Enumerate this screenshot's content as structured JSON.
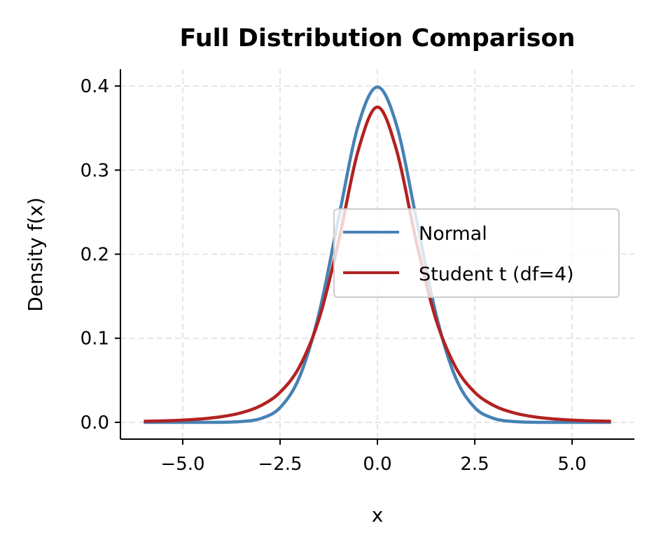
{
  "chart_data": {
    "type": "line",
    "title": "Full Distribution Comparison",
    "xlabel": "x",
    "ylabel": "Density f(x)",
    "xlim": [
      -6.6,
      6.6
    ],
    "ylim": [
      -0.02,
      0.42
    ],
    "xticks": [
      -5.0,
      -2.5,
      0.0,
      2.5,
      5.0
    ],
    "xtick_labels": [
      "−5.0",
      "−2.5",
      "0.0",
      "2.5",
      "5.0"
    ],
    "yticks": [
      0.0,
      0.1,
      0.2,
      0.3,
      0.4
    ],
    "ytick_labels": [
      "0.0",
      "0.1",
      "0.2",
      "0.3",
      "0.4"
    ],
    "grid": true,
    "legend_position": "center-right",
    "x": [
      -6,
      -5.5,
      -5,
      -4.5,
      -4,
      -3.5,
      -3,
      -2.5,
      -2,
      -1.5,
      -1,
      -0.5,
      0,
      0.5,
      1,
      1.5,
      2,
      2.5,
      3,
      3.5,
      4,
      4.5,
      5,
      5.5,
      6
    ],
    "series": [
      {
        "name": "Normal",
        "color": "#4682b4",
        "values": [
          0,
          0,
          0,
          0,
          0.0001,
          0.0009,
          0.0044,
          0.0175,
          0.054,
          0.1295,
          0.242,
          0.3521,
          0.3989,
          0.3521,
          0.242,
          0.1295,
          0.054,
          0.0175,
          0.0044,
          0.0009,
          0.0001,
          0,
          0,
          0,
          0
        ]
      },
      {
        "name": "Student t (df=4)",
        "color": "#b22222",
        "values": [
          0.0012,
          0.0017,
          0.0026,
          0.0041,
          0.0067,
          0.0113,
          0.0197,
          0.0357,
          0.0663,
          0.1229,
          0.2147,
          0.3223,
          0.375,
          0.3223,
          0.2147,
          0.1229,
          0.0663,
          0.0357,
          0.0197,
          0.0113,
          0.0067,
          0.0041,
          0.0026,
          0.0017,
          0.0012
        ]
      }
    ]
  }
}
